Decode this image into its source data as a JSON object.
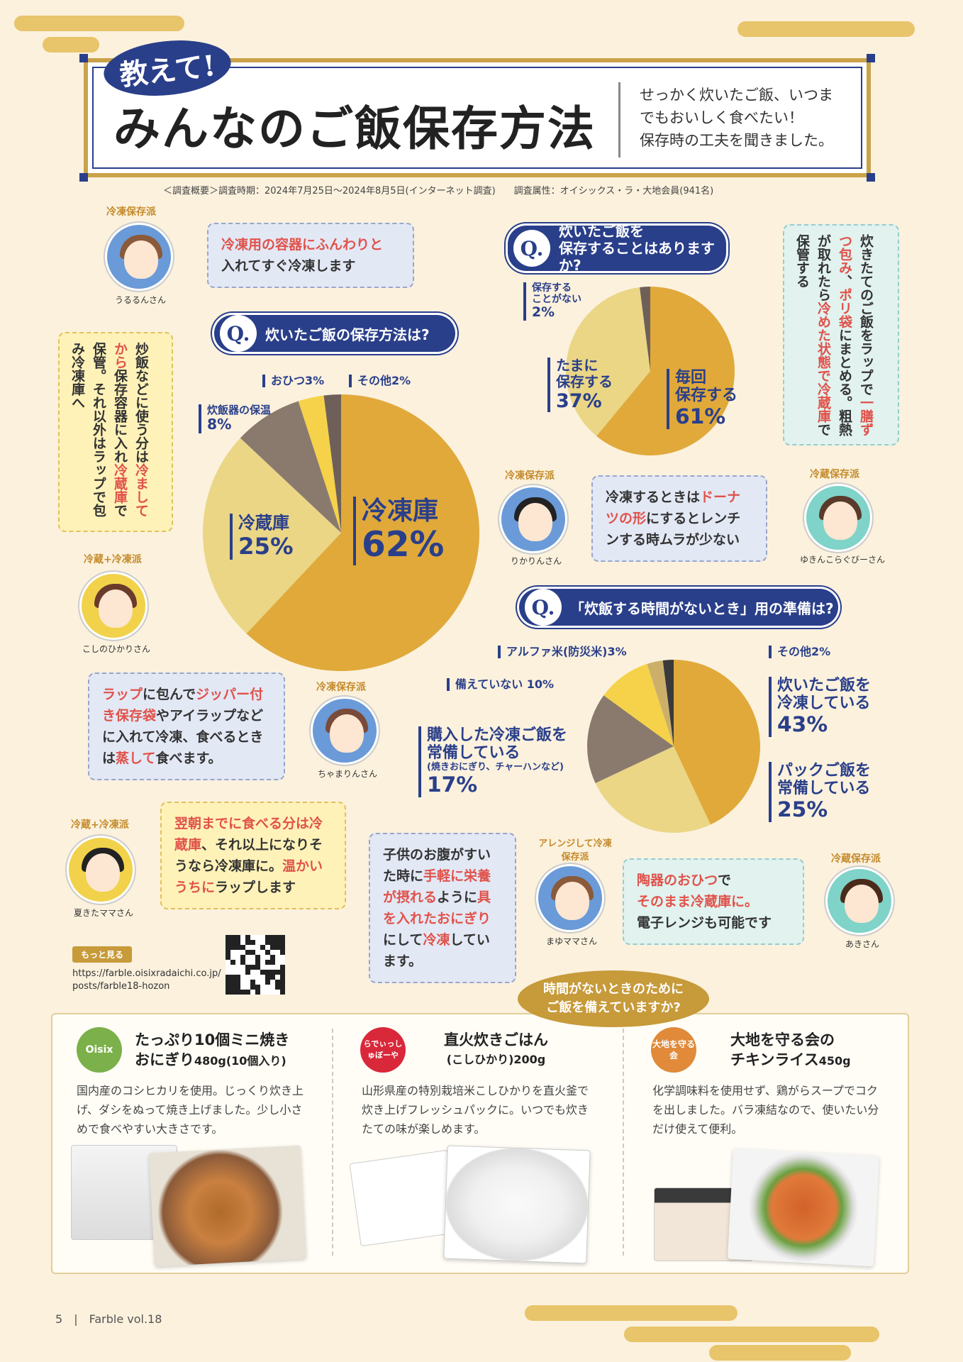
{
  "header": {
    "badge": "教えて!",
    "title": "みんなのご飯保存方法",
    "subtitle_lines": [
      "せっかく炊いたご飯、いつま",
      "でもおいしく食べたい！",
      "保存時の工夫を聞きました。"
    ],
    "survey_note": "＜調査概要＞調査時期：2024年7月25日〜2024年8月5日(インターネット調査)　　調査属性：オイシックス・ラ・大地会員(941名)"
  },
  "q1": {
    "label": "Q.",
    "title": "炊いたご飯の保存方法は?",
    "chart_data": {
      "type": "pie",
      "categories": [
        "冷凍庫",
        "冷蔵庫",
        "炊飯器の保温",
        "おひつ",
        "その他"
      ],
      "values": [
        62,
        25,
        8,
        3,
        2
      ],
      "unit": "%"
    },
    "labels": {
      "freezer": "冷凍庫",
      "freezer_pct": "62%",
      "fridge": "冷蔵庫",
      "fridge_pct": "25%",
      "warm": "炊飯器の保温",
      "warm_pct": "8%",
      "ohitsu": "おひつ3%",
      "other": "その他2%"
    }
  },
  "q2": {
    "label": "Q.",
    "title_lines": [
      "炊いたご飯を",
      "保存することはありますか?"
    ],
    "chart_data": {
      "type": "pie",
      "categories": [
        "毎回保存する",
        "たまに保存する",
        "保存することがない"
      ],
      "values": [
        61,
        37,
        2
      ],
      "unit": "%"
    },
    "labels": {
      "always_1": "毎回",
      "always_2": "保存する",
      "always_pct": "61%",
      "sometimes_1": "たまに",
      "sometimes_2": "保存する",
      "sometimes_pct": "37%",
      "never_1": "保存する",
      "never_2": "ことがない",
      "never_pct": "2%"
    }
  },
  "q3": {
    "label": "Q.",
    "title": "「炊飯する時間がないとき」用の準備は?",
    "chart_data": {
      "type": "pie",
      "categories": [
        "炊いたご飯を冷凍している",
        "パックご飯を常備している",
        "購入した冷凍ご飯を常備している",
        "備えていない",
        "アルファ米(防災米)",
        "その他"
      ],
      "values": [
        43,
        25,
        17,
        10,
        3,
        2
      ],
      "unit": "%"
    },
    "labels": {
      "frozen_1": "炊いたご飯を",
      "frozen_2": "冷凍している",
      "frozen_pct": "43%",
      "pack_1": "パックご飯を",
      "pack_2": "常備している",
      "pack_pct": "25%",
      "bought_1": "購入した冷凍ご飯を",
      "bought_2": "常備している",
      "bought_note": "(焼きおにぎり、チャーハンなど)",
      "bought_pct": "17%",
      "none": "備えていない 10%",
      "alpha": "アルファ米(防災米)3%",
      "other": "その他2%"
    }
  },
  "comments": {
    "uruurun": {
      "tag": "冷凍保存派",
      "name": "うるるんさん",
      "red": "冷凍用の容器にふんわりと",
      "text": "入れてすぐ冷凍します"
    },
    "koshino": {
      "tag": "冷蔵+冷凍派",
      "name": "こしのひかりさん",
      "p1": "炒飯などに使う分は",
      "r1": "冷まし",
      "r2": "てから",
      "p2": "保存容器に入れ",
      "r3": "冷蔵庫",
      "p3": "で保管。それ以外はラップで包み冷凍庫へ"
    },
    "yukin": {
      "tag": "冷蔵保存派",
      "name": "ゆきんこらぐびーさん",
      "p1": "炊きたてのご飯をラップで",
      "r1": "一膳ずつ包み",
      "p2": "、",
      "r2": "ポリ袋",
      "p3": "にまとめる。粗熱が取れたら",
      "r3": "冷めた状態で冷蔵庫",
      "p4": "で保管する"
    },
    "rikarin": {
      "tag": "冷凍保存派",
      "name": "りかりんさん",
      "p1": "冷凍するときは",
      "r1": "ドーナツの形",
      "p2": "にするとレンチンする時ムラが少ない"
    },
    "chamari": {
      "tag": "冷凍保存派",
      "name": "ちゃまりんさん",
      "r1": "ラップ",
      "p1": "に包んで",
      "r2": "ジッパー付き保存袋",
      "p2": "やアイラップなどに入れて冷凍、食べるときは",
      "r3": "蒸して",
      "p3": "食べます。"
    },
    "natsuki": {
      "tag": "冷蔵+冷凍派",
      "name": "夏きたママさん",
      "r1": "翌朝までに食べる分は冷蔵庫",
      "p1": "、それ以上になりそうなら冷凍庫に。",
      "r2": "温かいうちに",
      "p2": "ラップします"
    },
    "mayu": {
      "tag": "アレンジして冷凍保存派",
      "name": "まゆママさん",
      "p1": "子供のお腹がすいた時に",
      "r1": "手軽に栄養が摂れる",
      "p2": "ように",
      "r2": "具を入れたおにぎり",
      "p3": "にして",
      "r3": "冷凍",
      "p4": "しています。"
    },
    "aki": {
      "tag": "冷蔵保存派",
      "name": "あきさん",
      "r1": "陶器のおひつ",
      "p1": "で",
      "r2": "そのまま冷蔵庫に。",
      "p2": "電子レンジも可能です"
    }
  },
  "more": {
    "label": "もっと見る",
    "url_1": "https://farble.oisixradaichi.co.jp/",
    "url_2": "posts/farble18-hozon"
  },
  "callout": {
    "line1": "時間がないときのために",
    "line2": "ご飯を備えていますか?"
  },
  "products": [
    {
      "brand": "Oisix",
      "brand_color": "#7bb04a",
      "title_1": "たっぷり10個ミニ焼き",
      "title_2": "おにぎり",
      "size": "480g(10個入り)",
      "desc": "国内産のコシヒカリを使用。じっくり炊き上げ、ダシをぬって焼き上げました。少し小さめで食べやすい大きさです。"
    },
    {
      "brand": "らでぃっしゅぼーや",
      "brand_color": "#d9283a",
      "title_1": "直火炊きごはん",
      "title_2": "(こしひかり)",
      "size": "200g",
      "desc": "山形県産の特別栽培米こしひかりを直火釜で炊き上げフレッシュパックに。いつでも炊きたての味が楽しめます。"
    },
    {
      "brand": "大地を守る会",
      "brand_color": "#e08a3a",
      "title_1": "大地を守る会の",
      "title_2": "チキンライス",
      "size": "450g",
      "desc": "化学調味料を使用せず、鶏がらスープでコクを出しました。バラ凍結なので、使いたい分だけ使えて便利。"
    }
  ],
  "footer": {
    "page": "5",
    "mag": "Farble vol.18"
  },
  "colors": {
    "navy": "#2a3f8a",
    "gold": "#e0a93a",
    "accent_red": "#e0524a"
  }
}
